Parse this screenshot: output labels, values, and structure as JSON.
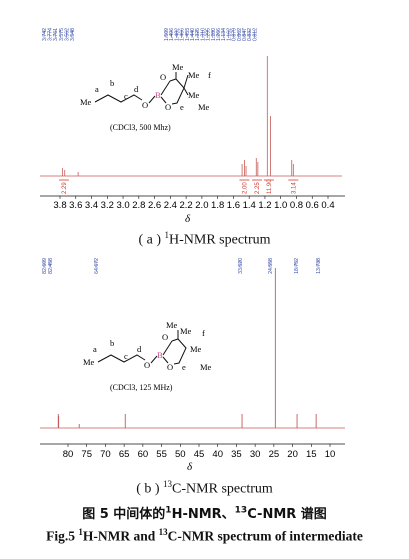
{
  "spectrum_h": {
    "peak_labels": [
      "3.742",
      "3.774",
      "3.761",
      "3.575",
      "3.562",
      "3.548",
      "1.509",
      "1.496",
      "1.482",
      "1.466",
      "1.453",
      "1.440",
      "1.325",
      "1.310",
      "1.295",
      "1.280",
      "1.266",
      "1.134",
      "1.162",
      "0.879",
      "0.862",
      "0.847",
      "0.832",
      "0.812"
    ],
    "peak_groups": [
      6,
      18
    ],
    "solvent_note": "(CDCl3, 500 Mhz)",
    "axis_ticks": [
      "3.8",
      "3.6",
      "3.4",
      "3.2",
      "3.0",
      "2.8",
      "2.6",
      "2.4",
      "2.2",
      "2.0",
      "1.8",
      "1.6",
      "1.4",
      "1.2",
      "1.0",
      "0.8",
      "0.6",
      "0.4"
    ],
    "axis_symbol": "δ",
    "integrals": [
      "2.29",
      "2.00",
      "2.25",
      "11.90",
      "3.14"
    ],
    "label_prefix": "( a ) ",
    "label_sup": "1",
    "label_main": "H-NMR  spectrum"
  },
  "spectrum_c": {
    "peak_labels": [
      "82.609",
      "82.458",
      "64.672",
      "33.520",
      "24.558",
      "18.752",
      "13.738"
    ],
    "peak_groups": [
      2,
      1,
      4
    ],
    "solvent_note": "(CDCl3, 125 MHz)",
    "axis_ticks": [
      "80",
      "75",
      "70",
      "65",
      "60",
      "55",
      "50",
      "45",
      "40",
      "35",
      "30",
      "25",
      "20",
      "15",
      "10"
    ],
    "axis_symbol": "δ",
    "label_prefix": "( b ) ",
    "label_sup": "13",
    "label_main": "C-NMR  spectrum"
  },
  "molecule": {
    "letters": [
      "a",
      "b",
      "c",
      "d",
      "e",
      "f"
    ],
    "atoms": [
      "O",
      "B",
      "O",
      "Me",
      "Me",
      "Me",
      "Me"
    ]
  },
  "caption": {
    "cn_prefix": "图 5   中间体的",
    "cn_sup1": "1",
    "cn_mid": "H-NMR、",
    "cn_sup2": "13",
    "cn_end": "C-NMR 谱图",
    "en_prefix": "Fig.5   ",
    "en_sup1": "1",
    "en_mid": "H-NMR and ",
    "en_sup2": "13",
    "en_end": "C-NMR spectrum of intermediate"
  },
  "colors": {
    "label_blue": "#3a4fa8",
    "integral_red": "#d23a2a",
    "boron_pink": "#d83a8a",
    "trace": "#c65a58"
  }
}
